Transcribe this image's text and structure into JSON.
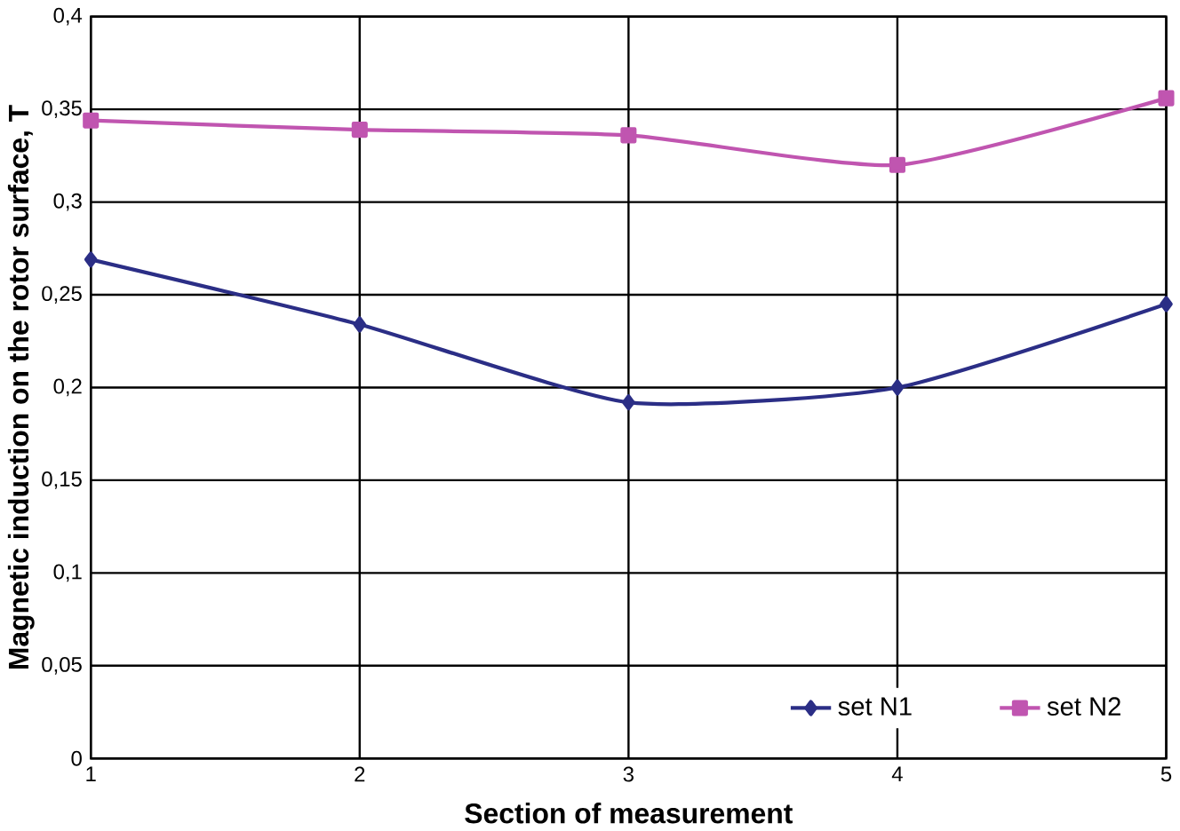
{
  "chart_data": {
    "type": "line",
    "xlabel": "Section of measurement",
    "ylabel": "Magnetic induction on the rotor surface, T",
    "x": [
      1,
      2,
      3,
      4,
      5
    ],
    "series": [
      {
        "name": "set N1",
        "color": "#2b2e86",
        "marker": "diamond",
        "values": [
          0.269,
          0.234,
          0.192,
          0.2,
          0.245
        ]
      },
      {
        "name": "set N2",
        "color": "#c055b0",
        "marker": "square",
        "values": [
          0.344,
          0.339,
          0.336,
          0.32,
          0.356
        ]
      }
    ],
    "xlim": [
      1,
      5
    ],
    "xticks": [
      1,
      2,
      3,
      4,
      5
    ],
    "ylim": [
      0,
      0.4
    ],
    "yticks": [
      0,
      {
        "value": 0.05,
        "label": "0,05"
      },
      {
        "value": 0.1,
        "label": "0,1"
      },
      {
        "value": 0.15,
        "label": "0,15"
      },
      {
        "value": 0.2,
        "label": "0,2"
      },
      {
        "value": 0.25,
        "label": "0,25"
      },
      {
        "value": 0.3,
        "label": "0,3"
      },
      {
        "value": 0.35,
        "label": "0,35"
      },
      {
        "value": 0.4,
        "label": "0,4"
      }
    ],
    "grid": true,
    "legend": "bottom right",
    "line_style": "solid"
  }
}
